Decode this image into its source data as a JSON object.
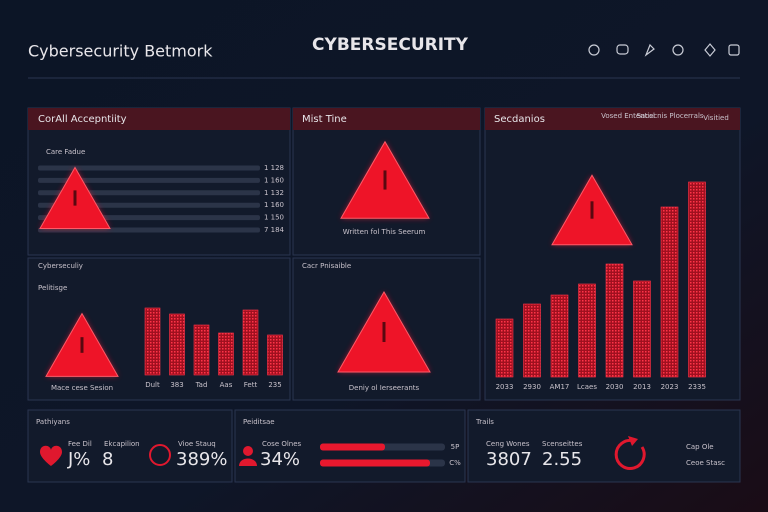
{
  "header": {
    "app_title": "Cybersecurity Betmork",
    "title": "CYBERSECURITY"
  },
  "panels": [
    {
      "title": "CorAll Accepntiity",
      "subtitle": "Care Fadue",
      "rows": [
        "1 128",
        "1 160",
        "1 132",
        "1 160",
        "1 150",
        "7 184"
      ]
    },
    {
      "title": "Mist Tine",
      "caption": "Written fol This Seerum"
    },
    {
      "title": "Secdanios",
      "tags": [
        "Vosed Ententisl",
        "Sacecnis Plocerrals",
        "Visitied"
      ],
      "bars": {
        "categories": [
          "2033",
          "2930",
          "AM17",
          "Lcaes",
          "2030",
          "2013",
          "2023",
          "2335"
        ],
        "values": [
          58,
          73,
          82,
          93,
          113,
          96,
          170,
          195
        ]
      }
    },
    {
      "title": "Cyberseculiy",
      "subtitle": "Pelitisge",
      "caption": "Mace cese Sesion",
      "bars": {
        "categories": [
          "Dult",
          "383",
          "Tad",
          "Aas",
          "Fett",
          "235"
        ],
        "values": [
          67,
          61,
          50,
          42,
          65,
          40
        ]
      }
    },
    {
      "title": "Cacr Pnisaible",
      "caption": "Deniy ol Ierseerants"
    }
  ],
  "stats": [
    {
      "title": "Pathiyans",
      "items": [
        {
          "label": "Fee Dil",
          "value": "J%"
        },
        {
          "label": "Ekcapilion",
          "value": "8"
        },
        {
          "label": "Vioe Stauq",
          "value": "389%"
        }
      ]
    },
    {
      "title": "Peiditsae",
      "items": [
        {
          "label": "Cose Olnes",
          "value": "34%"
        }
      ],
      "progress": [
        {
          "value": 52,
          "label": "5P"
        },
        {
          "value": 88,
          "label": "C%"
        }
      ]
    },
    {
      "title": "Trails",
      "items": [
        {
          "label": "Ceng Wones",
          "value": "3807"
        },
        {
          "label": "Scenseittes",
          "value": "2.55"
        },
        {
          "label": "Cap Ole"
        },
        {
          "label": "Ceoe Stasc"
        }
      ]
    }
  ]
}
